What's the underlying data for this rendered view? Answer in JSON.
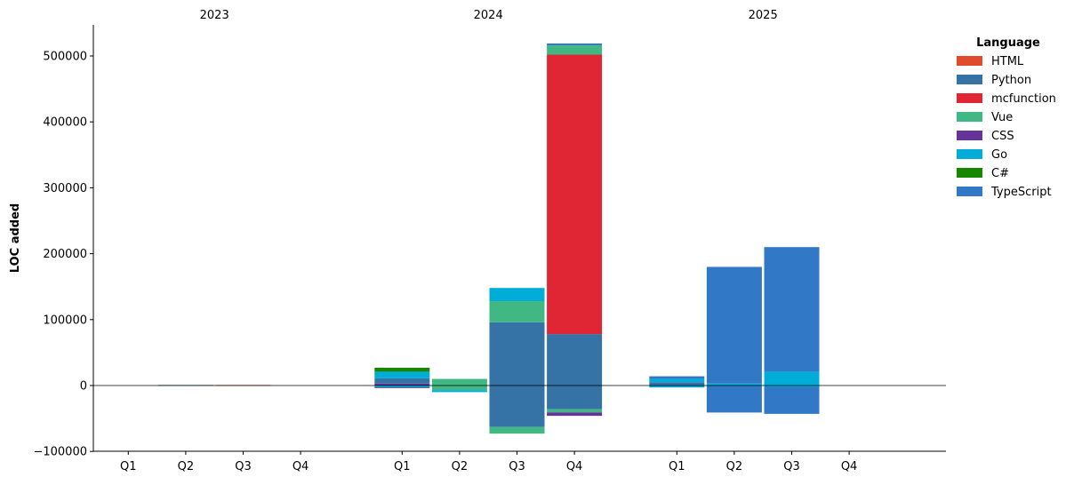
{
  "chart_data": {
    "type": "bar",
    "stacked": true,
    "ylabel": "LOC added",
    "ylim": [
      -100000,
      550000
    ],
    "yticks": [
      -100000,
      0,
      100000,
      200000,
      300000,
      400000,
      500000
    ],
    "ytick_labels": [
      "−100000",
      "0",
      "100000",
      "200000",
      "300000",
      "400000",
      "500000"
    ],
    "zero_line": true,
    "grid": false,
    "legend": {
      "title": "Language",
      "position": "top-right",
      "entries": [
        {
          "name": "HTML",
          "color": "#e24a2c"
        },
        {
          "name": "Python",
          "color": "#3572a5"
        },
        {
          "name": "mcfunction",
          "color": "#e02534"
        },
        {
          "name": "Vue",
          "color": "#41b883"
        },
        {
          "name": "CSS",
          "color": "#663399"
        },
        {
          "name": "Go",
          "color": "#00add8"
        },
        {
          "name": "C#",
          "color": "#178600"
        },
        {
          "name": "TypeScript",
          "color": "#3178c6"
        }
      ]
    },
    "panels": [
      {
        "title": "2023",
        "categories": [
          "Q1",
          "Q2",
          "Q3",
          "Q4"
        ],
        "bars": [
          {
            "category": "Q1",
            "positive": [],
            "negative": []
          },
          {
            "category": "Q2",
            "positive": [
              {
                "series": "Python",
                "value": 800
              }
            ],
            "negative": []
          },
          {
            "category": "Q3",
            "positive": [
              {
                "series": "HTML",
                "value": 800
              }
            ],
            "negative": []
          },
          {
            "category": "Q4",
            "positive": [],
            "negative": []
          }
        ]
      },
      {
        "title": "2024",
        "categories": [
          "Q1",
          "Q2",
          "Q3",
          "Q4"
        ],
        "bars": [
          {
            "category": "Q1",
            "positive": [
              {
                "series": "CSS",
                "value": 3000
              },
              {
                "series": "Python",
                "value": 8000
              },
              {
                "series": "Go",
                "value": 10000
              },
              {
                "series": "C#",
                "value": 6000
              }
            ],
            "negative": [
              {
                "series": "Go",
                "value": -3000
              },
              {
                "series": "CSS",
                "value": -1000
              }
            ]
          },
          {
            "category": "Q2",
            "positive": [
              {
                "series": "Vue",
                "value": 10000
              }
            ],
            "negative": [
              {
                "series": "Vue",
                "value": -7000
              },
              {
                "series": "Go",
                "value": -3000
              }
            ]
          },
          {
            "category": "Q3",
            "positive": [
              {
                "series": "Python",
                "value": 96000
              },
              {
                "series": "Vue",
                "value": 32000
              },
              {
                "series": "Go",
                "value": 20000
              }
            ],
            "negative": [
              {
                "series": "Python",
                "value": -63000
              },
              {
                "series": "Vue",
                "value": -10000
              }
            ]
          },
          {
            "category": "Q4",
            "positive": [
              {
                "series": "Python",
                "value": 78000
              },
              {
                "series": "mcfunction",
                "value": 424000
              },
              {
                "series": "Vue",
                "value": 14000
              },
              {
                "series": "TypeScript",
                "value": 3000
              }
            ],
            "negative": [
              {
                "series": "Python",
                "value": -36000
              },
              {
                "series": "Vue",
                "value": -5000
              },
              {
                "series": "CSS",
                "value": -5000
              }
            ]
          }
        ]
      },
      {
        "title": "2025",
        "categories": [
          "Q1",
          "Q2",
          "Q3",
          "Q4"
        ],
        "bars": [
          {
            "category": "Q1",
            "positive": [
              {
                "series": "Python",
                "value": 5000
              },
              {
                "series": "Go",
                "value": 5000
              },
              {
                "series": "TypeScript",
                "value": 4000
              }
            ],
            "negative": [
              {
                "series": "Go",
                "value": -3000
              }
            ]
          },
          {
            "category": "Q2",
            "positive": [
              {
                "series": "Go",
                "value": 3000
              },
              {
                "series": "TypeScript",
                "value": 177000
              }
            ],
            "negative": [
              {
                "series": "TypeScript",
                "value": -41000
              }
            ]
          },
          {
            "category": "Q3",
            "positive": [
              {
                "series": "Go",
                "value": 21000
              },
              {
                "series": "TypeScript",
                "value": 189000
              }
            ],
            "negative": [
              {
                "series": "Go",
                "value": -2000
              },
              {
                "series": "TypeScript",
                "value": -41000
              }
            ]
          },
          {
            "category": "Q4",
            "positive": [],
            "negative": []
          }
        ]
      }
    ]
  }
}
